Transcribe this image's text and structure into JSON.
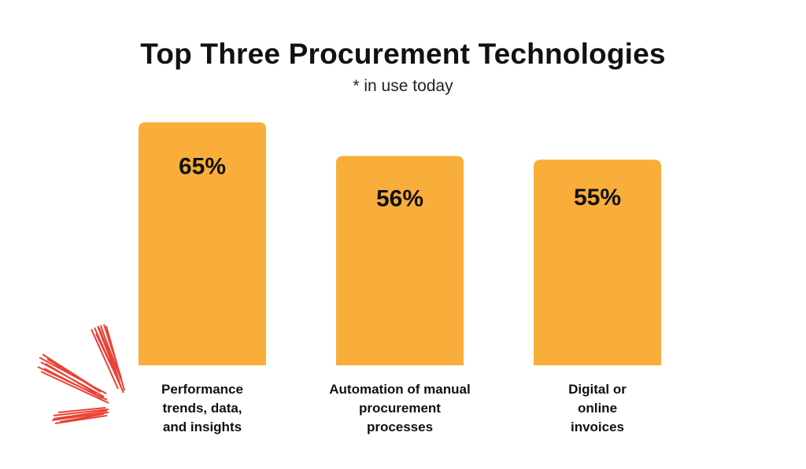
{
  "chart_data": {
    "type": "bar",
    "title": "Top Three Procurement Technologies",
    "subtitle": "* in use today",
    "categories": [
      [
        "Performance",
        "trends, data,",
        "and insights"
      ],
      [
        "Automation of manual",
        "procurement",
        "processes"
      ],
      [
        "Digital or",
        "online",
        "invoices"
      ]
    ],
    "values": [
      65,
      56,
      55
    ],
    "value_labels": [
      "65%",
      "56%",
      "55%"
    ],
    "ylim": [
      0,
      100
    ],
    "grid": false,
    "legend": "none",
    "colors": {
      "bar": "#F9AE3B",
      "accent": "#E8372C",
      "text": "#111111"
    }
  }
}
